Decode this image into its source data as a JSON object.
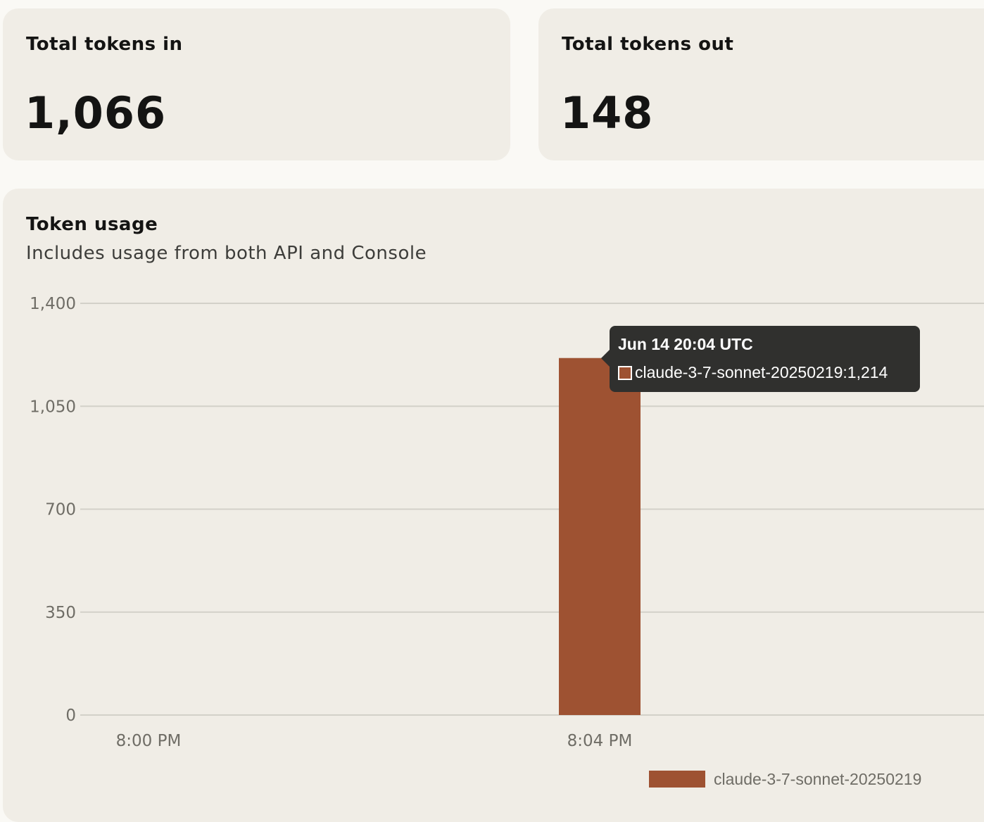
{
  "stats": {
    "tokens_in_label": "Total tokens in",
    "tokens_in_value": "1,066",
    "tokens_out_label": "Total tokens out",
    "tokens_out_value": "148"
  },
  "chart_data": {
    "type": "bar",
    "title": "Token usage",
    "subtitle": "Includes usage from both API and Console",
    "categories": [
      "8:00 PM",
      "8:04 PM"
    ],
    "series": [
      {
        "name": "claude-3-7-sonnet-20250219",
        "color": "#9e5232",
        "values": [
          0,
          1214
        ]
      }
    ],
    "y_ticks": [
      "0",
      "350",
      "700",
      "1,050",
      "1,400"
    ],
    "ylim": [
      0,
      1400
    ],
    "grid": true,
    "legend": "bottom-right",
    "tooltip": {
      "title": "Jun 14 20:04 UTC",
      "series_name": "claude-3-7-sonnet-20250219",
      "value": "1,214"
    }
  }
}
